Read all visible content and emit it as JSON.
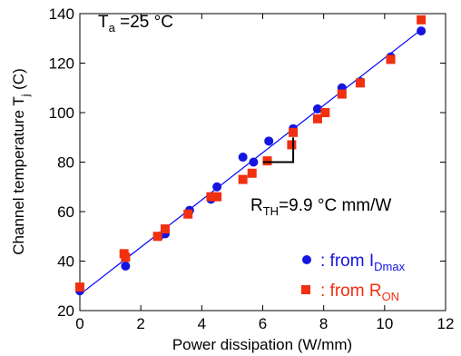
{
  "chart_data": {
    "type": "scatter",
    "xlabel": "Power dissipation (W/mm)",
    "ylabel": {
      "main": "Channel temperature T",
      "sub": "j",
      "unit": " (C)"
    },
    "xlim": [
      0,
      12
    ],
    "ylim": [
      20,
      140
    ],
    "x_ticks": [
      0,
      2,
      4,
      6,
      8,
      10,
      12
    ],
    "y_ticks": [
      20,
      40,
      60,
      80,
      100,
      120,
      140
    ],
    "grid": false,
    "legend_position": "bottom-right",
    "annotations": {
      "ambient": {
        "main": "T",
        "sub": "a",
        "rest": " =25 °C"
      },
      "rth": {
        "main": "R",
        "sub": "TH",
        "rest": "=9.9 °C mm/W"
      },
      "rth_bracket": {
        "x0": 6,
        "x1": 7,
        "y0": 80,
        "y1": 90
      }
    },
    "fit_line": {
      "color": "#0000ff",
      "x": [
        0,
        11.2
      ],
      "y": [
        26.5,
        133.5
      ]
    },
    "series": [
      {
        "name": {
          "prefix": ": from I",
          "sub": "Dmax"
        },
        "marker": "circle",
        "color": "#1515e0",
        "x": [
          0.0,
          1.5,
          2.6,
          2.8,
          3.6,
          4.3,
          4.5,
          5.35,
          5.7,
          6.2,
          7.0,
          7.8,
          8.6,
          9.2,
          10.2,
          11.2
        ],
        "y": [
          28,
          38,
          50,
          51,
          60.5,
          65,
          70,
          82,
          80,
          88.5,
          93.5,
          101.5,
          110,
          112.5,
          122.5,
          133
        ]
      },
      {
        "name": {
          "prefix": ": from R",
          "sub": "ON"
        },
        "marker": "square",
        "color": "#f03010",
        "x": [
          0.0,
          1.45,
          1.5,
          2.55,
          2.8,
          3.55,
          4.3,
          4.5,
          5.35,
          5.65,
          6.15,
          6.95,
          7.0,
          7.8,
          8.05,
          8.6,
          9.2,
          10.2,
          11.2
        ],
        "y": [
          29.5,
          43,
          41.5,
          50,
          53,
          59,
          66,
          66,
          73,
          75.5,
          80.5,
          87,
          92,
          97.5,
          100,
          107.5,
          112,
          121.5,
          137.5
        ]
      }
    ]
  }
}
